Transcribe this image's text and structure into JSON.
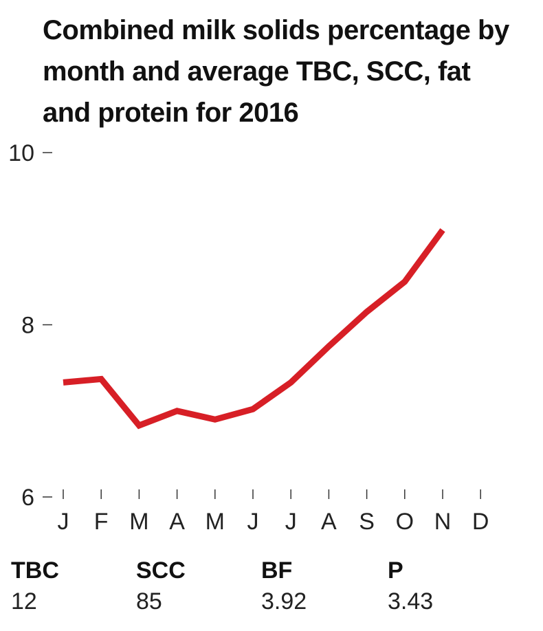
{
  "chart_data": {
    "type": "line",
    "title": "Combined milk solids percentage by month and average TBC, SCC, fat and protein for 2016",
    "categories": [
      "J",
      "F",
      "M",
      "A",
      "M",
      "J",
      "J",
      "A",
      "S",
      "O",
      "N",
      "D"
    ],
    "series": [
      {
        "values": [
          7.33,
          7.37,
          6.83,
          7.0,
          6.9,
          7.02,
          7.33,
          7.75,
          8.15,
          8.5,
          9.1,
          null
        ],
        "color": "#d71f26"
      }
    ],
    "y_ticks": [
      6,
      8,
      10
    ],
    "ylim": [
      6,
      10
    ],
    "grid": false,
    "xlabel": "",
    "ylabel": ""
  },
  "stats": [
    {
      "label": "TBC",
      "value": "12"
    },
    {
      "label": "SCC",
      "value": "85"
    },
    {
      "label": "BF",
      "value": "3.92"
    },
    {
      "label": "P",
      "value": "3.43"
    }
  ]
}
